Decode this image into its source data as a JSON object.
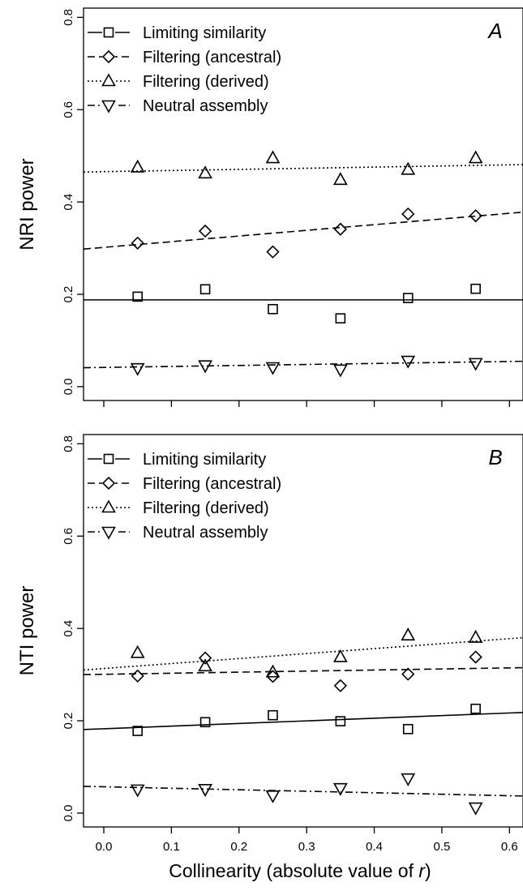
{
  "figure": {
    "xlabel_prefix": "Collinearity (absolute value of ",
    "xlabel_var": "r",
    "xlabel_suffix": ")"
  },
  "chart_data": [
    {
      "type": "scatter",
      "panel_letter": "A",
      "ylabel": "NRI power",
      "xlim": [
        -0.03,
        0.62
      ],
      "ylim": [
        -0.03,
        0.82
      ],
      "xticks": [
        "0.0",
        "0.1",
        "0.2",
        "0.3",
        "0.4",
        "0.5",
        "0.6"
      ],
      "yticks": [
        "0.0",
        "0.2",
        "0.4",
        "0.6",
        "0.8"
      ],
      "show_xtick_labels": false,
      "legend_position": "top-left",
      "x": [
        0.05,
        0.15,
        0.25,
        0.35,
        0.45,
        0.55
      ],
      "series": [
        {
          "name": "Limiting similarity",
          "marker": "square",
          "line": "solid",
          "values": [
            0.195,
            0.211,
            0.168,
            0.148,
            0.192,
            0.212
          ],
          "fit": [
            0.188,
            0.188
          ]
        },
        {
          "name": "Filtering (ancestral)",
          "marker": "diamond",
          "line": "dashed",
          "values": [
            0.311,
            0.337,
            0.292,
            0.341,
            0.374,
            0.37
          ],
          "fit": [
            0.298,
            0.378
          ]
        },
        {
          "name": "Filtering (derived)",
          "marker": "triangle-up",
          "line": "dotted",
          "values": [
            0.475,
            0.462,
            0.495,
            0.448,
            0.47,
            0.495
          ],
          "fit": [
            0.465,
            0.481
          ]
        },
        {
          "name": "Neutral assembly",
          "marker": "triangle-down",
          "line": "dashdot",
          "values": [
            0.04,
            0.046,
            0.042,
            0.037,
            0.056,
            0.051
          ],
          "fit": [
            0.041,
            0.055
          ]
        }
      ]
    },
    {
      "type": "scatter",
      "panel_letter": "B",
      "ylabel": "NTI power",
      "xlim": [
        -0.03,
        0.62
      ],
      "ylim": [
        -0.03,
        0.82
      ],
      "xticks": [
        "0.0",
        "0.1",
        "0.2",
        "0.3",
        "0.4",
        "0.5",
        "0.6"
      ],
      "yticks": [
        "0.0",
        "0.2",
        "0.4",
        "0.6",
        "0.8"
      ],
      "show_xtick_labels": true,
      "legend_position": "top-left",
      "x": [
        0.05,
        0.15,
        0.25,
        0.35,
        0.45,
        0.55
      ],
      "series": [
        {
          "name": "Limiting similarity",
          "marker": "square",
          "line": "solid",
          "values": [
            0.178,
            0.197,
            0.212,
            0.199,
            0.182,
            0.226
          ],
          "fit": [
            0.181,
            0.218
          ]
        },
        {
          "name": "Filtering (ancestral)",
          "marker": "diamond",
          "line": "dashed",
          "values": [
            0.297,
            0.336,
            0.296,
            0.276,
            0.301,
            0.338
          ],
          "fit": [
            0.3,
            0.315
          ]
        },
        {
          "name": "Filtering (derived)",
          "marker": "triangle-up",
          "line": "dotted",
          "values": [
            0.347,
            0.318,
            0.305,
            0.338,
            0.385,
            0.38
          ],
          "fit": [
            0.31,
            0.38
          ]
        },
        {
          "name": "Neutral assembly",
          "marker": "triangle-down",
          "line": "dashdot",
          "values": [
            0.051,
            0.052,
            0.038,
            0.054,
            0.075,
            0.012
          ],
          "fit": [
            0.058,
            0.037
          ]
        }
      ]
    }
  ]
}
